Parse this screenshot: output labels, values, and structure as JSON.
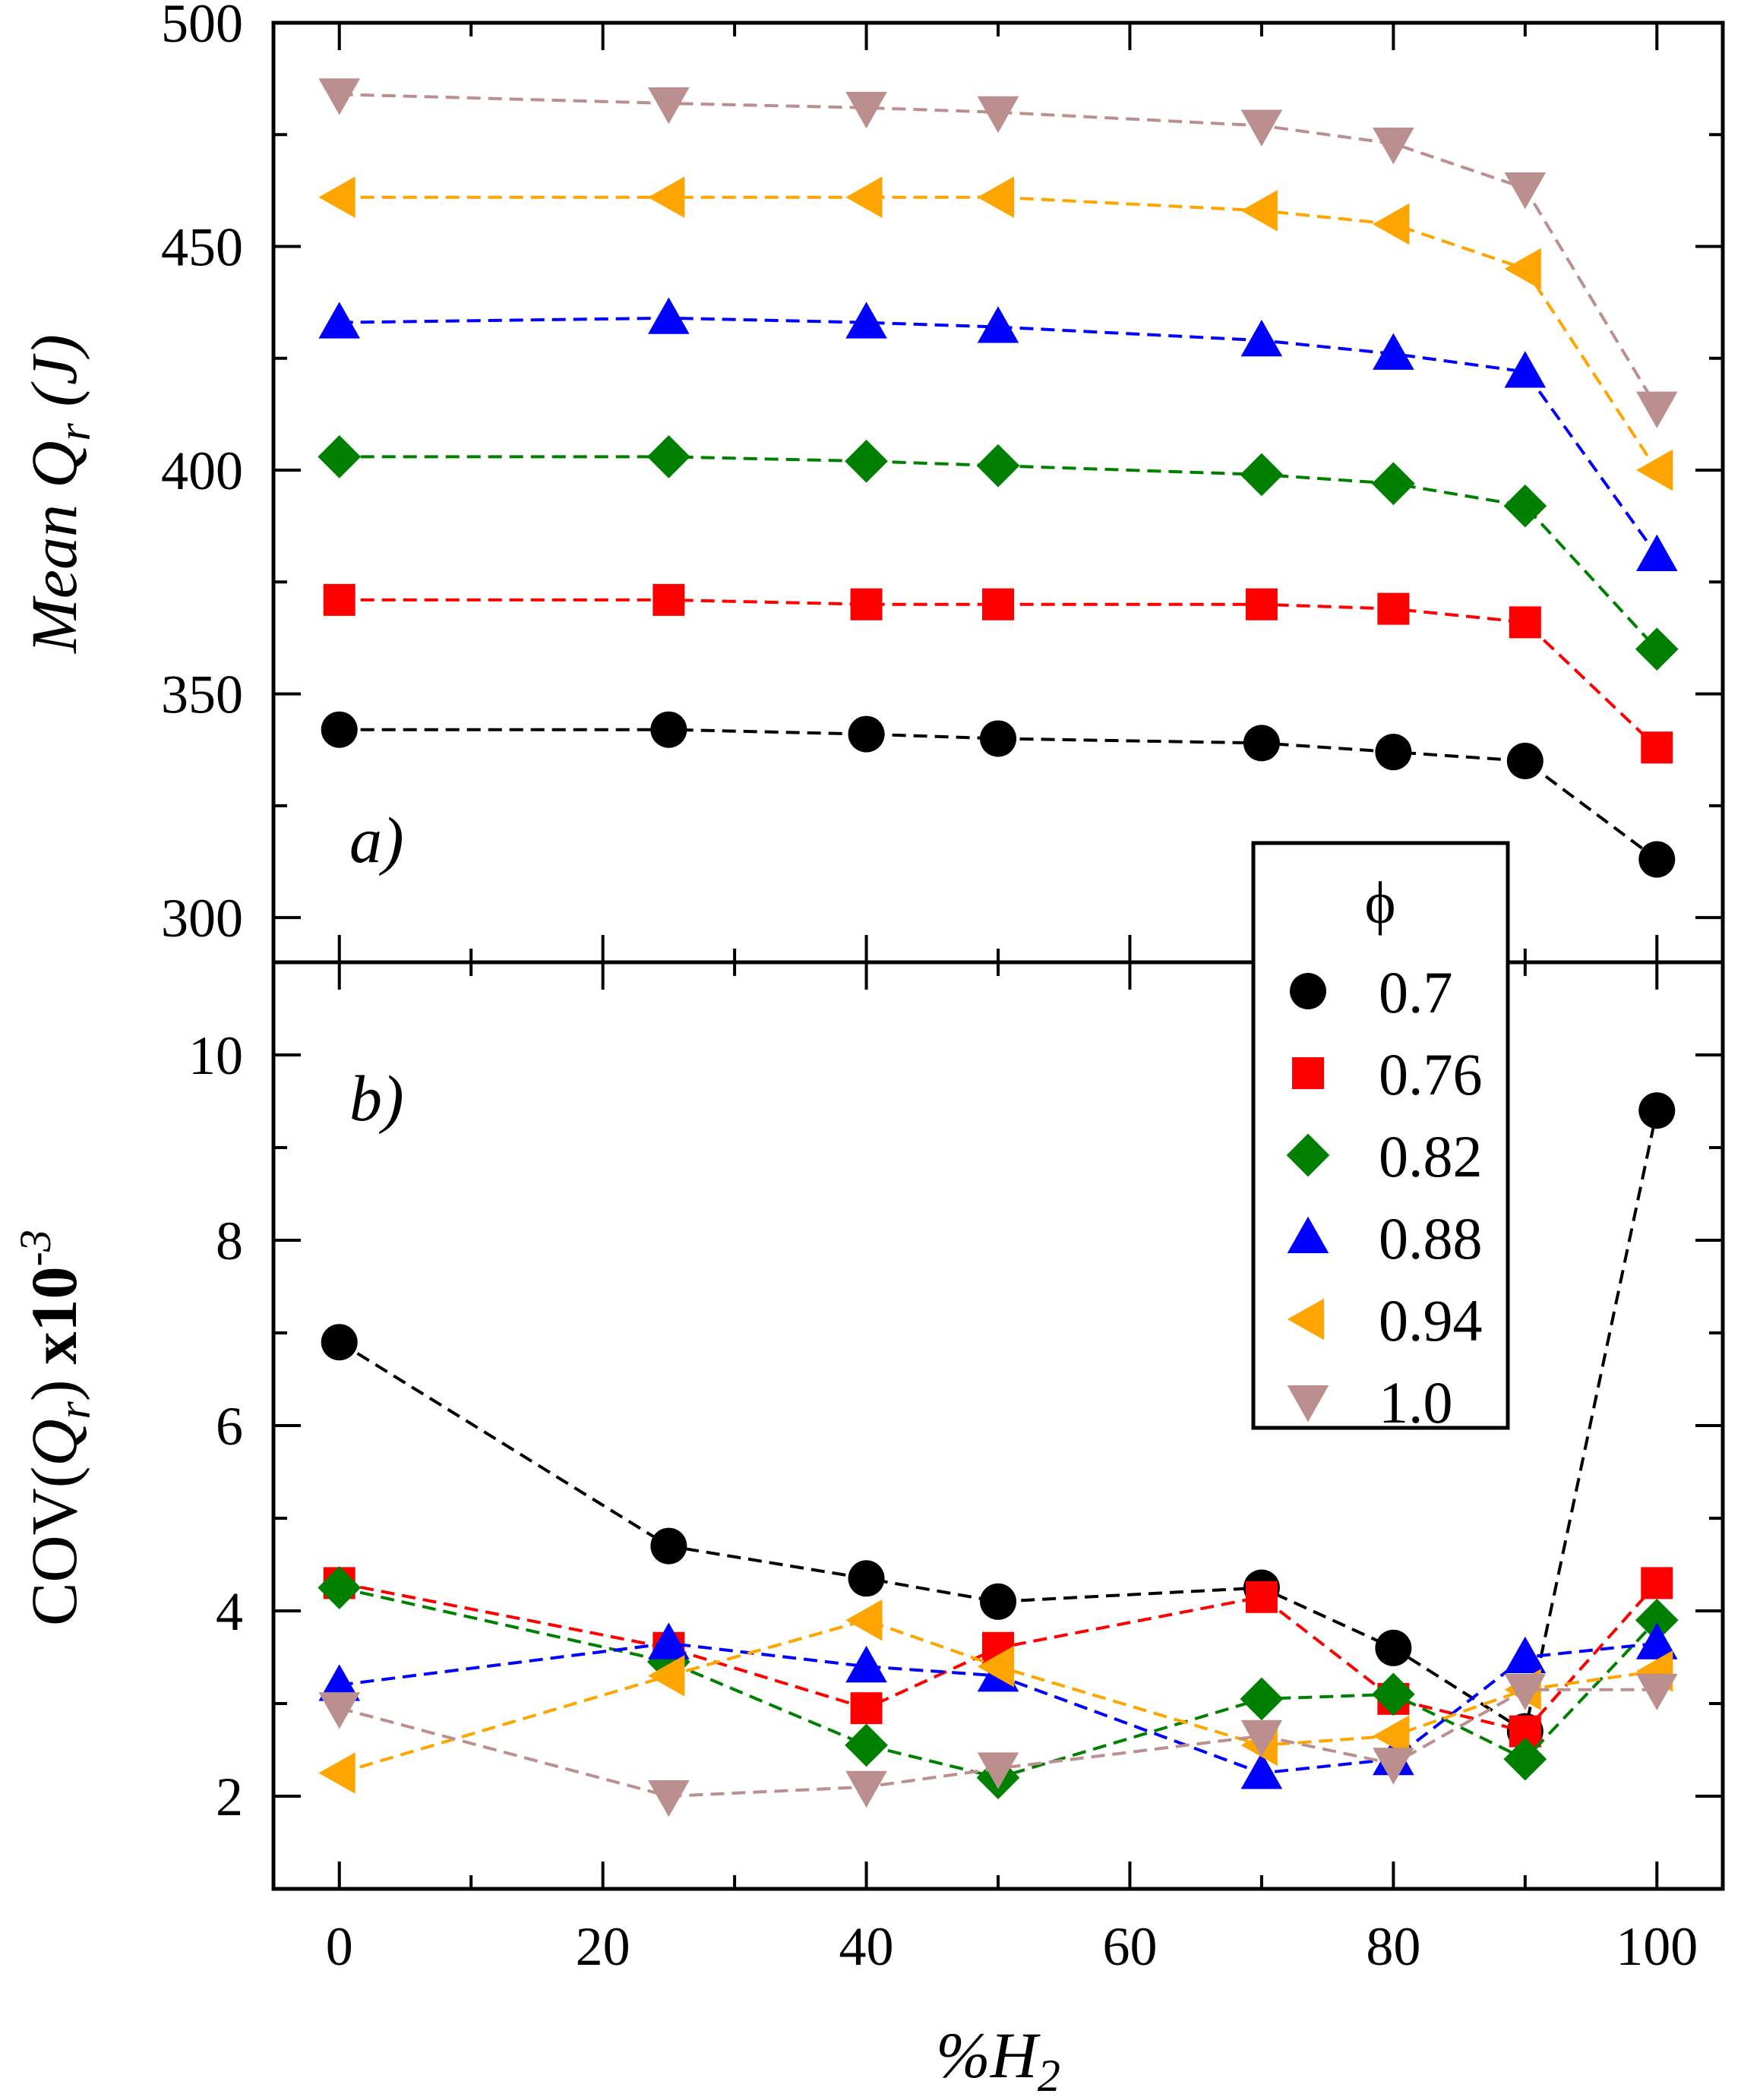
{
  "chart_data": [
    {
      "panel_label": "a)",
      "type": "line",
      "ylabel": "Mean Q_r (J)",
      "ylabel_parts": {
        "pre": "Mean ",
        "q": "Q",
        "sub": "r",
        "post": " (J)"
      },
      "ylim": [
        290,
        500
      ],
      "yticks": [
        300,
        350,
        400,
        450,
        500
      ],
      "xlim": [
        -5,
        105
      ],
      "x": [
        0,
        25,
        40,
        50,
        70,
        80,
        90,
        100
      ],
      "series": [
        {
          "name": "0.7",
          "color": "#000000",
          "marker": "circle",
          "values": [
            342,
            342,
            341,
            340,
            339,
            337,
            335,
            313
          ]
        },
        {
          "name": "0.76",
          "color": "#ff0000",
          "marker": "square",
          "values": [
            371,
            371,
            370,
            370,
            370,
            369,
            366,
            338
          ]
        },
        {
          "name": "0.82",
          "color": "#008000",
          "marker": "diamond",
          "values": [
            403,
            403,
            402,
            401,
            399,
            397,
            392,
            360
          ]
        },
        {
          "name": "0.88",
          "color": "#0000ff",
          "marker": "triangle-up",
          "values": [
            433,
            434,
            433,
            432,
            429,
            426,
            422,
            381
          ]
        },
        {
          "name": "0.94",
          "color": "#ffa500",
          "marker": "triangle-left",
          "values": [
            461,
            461,
            461,
            461,
            458,
            455,
            445,
            400
          ]
        },
        {
          "name": "1.0",
          "color": "#bc8f8f",
          "marker": "triangle-down",
          "values": [
            484,
            482,
            481,
            480,
            477,
            473,
            463,
            414
          ]
        }
      ]
    },
    {
      "panel_label": "b)",
      "type": "line",
      "ylabel": "COV(Q_r) x10^-3",
      "ylabel_parts": {
        "pre": "COV(",
        "q": "Q",
        "sub": "r",
        "post": ")",
        "mult": "x10",
        "sup": "-3"
      },
      "ylim": [
        1,
        11
      ],
      "yticks": [
        2,
        4,
        6,
        8,
        10
      ],
      "xlim": [
        -5,
        105
      ],
      "xticks": [
        0,
        20,
        40,
        60,
        80,
        100
      ],
      "xlabel_parts": {
        "pre": "%",
        "h": "H",
        "sub": "2"
      },
      "x": [
        0,
        25,
        40,
        50,
        70,
        80,
        90,
        100
      ],
      "series": [
        {
          "name": "0.7",
          "color": "#000000",
          "marker": "circle",
          "values": [
            6.9,
            4.7,
            4.35,
            4.1,
            4.25,
            3.6,
            2.7,
            9.4
          ]
        },
        {
          "name": "0.76",
          "color": "#ff0000",
          "marker": "square",
          "values": [
            4.3,
            3.6,
            2.95,
            3.6,
            4.15,
            3.05,
            2.7,
            4.3
          ]
        },
        {
          "name": "0.82",
          "color": "#008000",
          "marker": "diamond",
          "values": [
            4.25,
            3.45,
            2.55,
            2.2,
            3.05,
            3.1,
            2.4,
            3.9
          ]
        },
        {
          "name": "0.88",
          "color": "#0000ff",
          "marker": "triangle-up",
          "values": [
            3.2,
            3.65,
            3.4,
            3.3,
            2.25,
            2.4,
            3.5,
            3.65
          ]
        },
        {
          "name": "0.94",
          "color": "#ffa500",
          "marker": "triangle-left",
          "values": [
            2.25,
            3.3,
            3.9,
            3.4,
            2.55,
            2.65,
            3.15,
            3.35
          ]
        },
        {
          "name": "1.0",
          "color": "#bc8f8f",
          "marker": "triangle-down",
          "values": [
            2.95,
            2.0,
            2.1,
            2.3,
            2.65,
            2.35,
            3.15,
            3.15
          ]
        }
      ]
    }
  ],
  "legend": {
    "title": "ϕ",
    "items": [
      "0.7",
      "0.76",
      "0.82",
      "0.88",
      "0.94",
      "1.0"
    ]
  }
}
